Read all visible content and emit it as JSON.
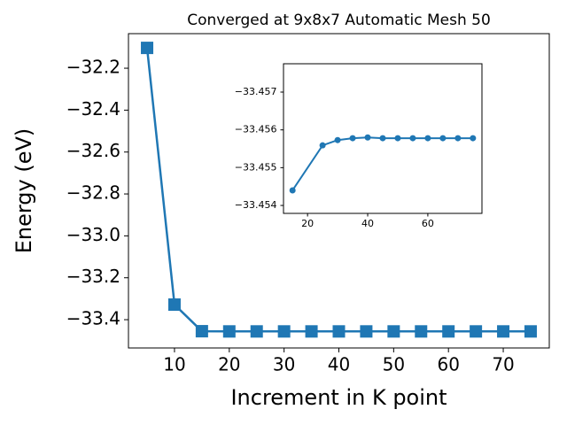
{
  "chart_data": [
    {
      "type": "line",
      "title": "Converged at 9x8x7 Automatic Mesh 50",
      "xlabel": "Increment in K point",
      "ylabel": "Energy (eV)",
      "x": [
        5,
        10,
        15,
        20,
        25,
        30,
        35,
        40,
        45,
        50,
        55,
        60,
        65,
        70,
        75
      ],
      "series": [
        {
          "color": "#1f77b4",
          "marker": "square",
          "values": [
            -32.103,
            -33.328,
            -33.455,
            -33.456,
            -33.456,
            -33.456,
            -33.456,
            -33.456,
            -33.456,
            -33.456,
            -33.456,
            -33.456,
            -33.456,
            -33.456,
            -33.456
          ]
        }
      ],
      "xlim": [
        1.6,
        78.4
      ],
      "ylim": [
        -33.535,
        -32.035
      ],
      "xticks": [
        10,
        20,
        30,
        40,
        50,
        60,
        70
      ],
      "yticks": [
        {
          "value": -33.4,
          "label": "−33.4"
        },
        {
          "value": -33.2,
          "label": "−33.2"
        },
        {
          "value": -33.0,
          "label": "−33.0"
        },
        {
          "value": -32.8,
          "label": "−32.8"
        },
        {
          "value": -32.6,
          "label": "−32.6"
        },
        {
          "value": -32.4,
          "label": "−32.4"
        },
        {
          "value": -32.2,
          "label": "−32.2"
        }
      ]
    },
    {
      "type": "line",
      "x": [
        15,
        25,
        30,
        35,
        40,
        45,
        50,
        55,
        60,
        65,
        70,
        75
      ],
      "series": [
        {
          "color": "#1f77b4",
          "marker": "circle",
          "values": [
            -33.4544,
            -33.45559,
            -33.45573,
            -33.45578,
            -33.4558,
            -33.45578,
            -33.45578,
            -33.45578,
            -33.45578,
            -33.45578,
            -33.45578,
            -33.45578
          ]
        }
      ],
      "xlim": [
        12,
        78
      ],
      "ylim": [
        -33.45379,
        -33.45775
      ],
      "xticks": [
        20,
        40,
        60
      ],
      "yticks": [
        {
          "value": -33.454,
          "label": "−33.454"
        },
        {
          "value": -33.455,
          "label": "−33.455"
        },
        {
          "value": -33.456,
          "label": "−33.456"
        },
        {
          "value": -33.457,
          "label": "−33.457"
        }
      ]
    }
  ]
}
